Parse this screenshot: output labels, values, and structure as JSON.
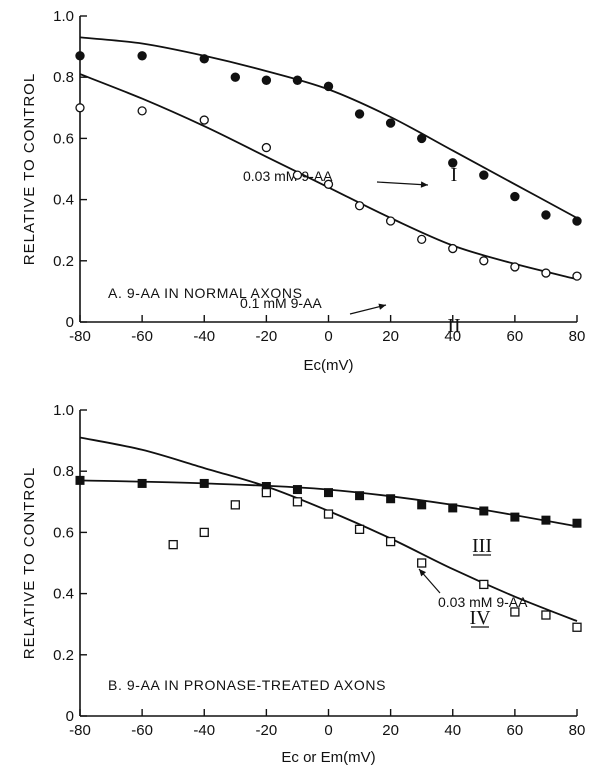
{
  "chart_data": [
    {
      "type": "scatter",
      "panel_label": "A.   9-AA IN NORMAL AXONS",
      "ylabel": "RELATIVE TO CONTROL",
      "xlabel": "Ec(mV)",
      "xlim": [
        -80,
        80
      ],
      "ylim": [
        0,
        1.0
      ],
      "xticks": [
        -80,
        -60,
        -40,
        -20,
        0,
        20,
        40,
        60,
        80
      ],
      "yticks": [
        0,
        0.2,
        0.4,
        0.6,
        0.8,
        1.0
      ],
      "ytick_labels": [
        "0",
        "0.2",
        "0.4",
        "0.6",
        "0.8",
        "1.0"
      ],
      "series": [
        {
          "name": "I",
          "marker": "filled-circle",
          "annotation": "0.03 mM 9-AA",
          "x": [
            -80,
            -60,
            -40,
            -30,
            -20,
            -10,
            0,
            10,
            20,
            30,
            40,
            50,
            60,
            70,
            80
          ],
          "y": [
            0.87,
            0.87,
            0.86,
            0.8,
            0.79,
            0.79,
            0.77,
            0.68,
            0.65,
            0.6,
            0.52,
            0.48,
            0.41,
            0.35,
            0.33
          ],
          "fit": {
            "x": [
              -80,
              -60,
              -40,
              -20,
              0,
              20,
              40,
              60,
              80
            ],
            "y": [
              0.93,
              0.91,
              0.87,
              0.82,
              0.76,
              0.67,
              0.56,
              0.45,
              0.34
            ]
          }
        },
        {
          "name": "II",
          "marker": "open-circle",
          "annotation": "0.1 mM 9-AA",
          "x": [
            -80,
            -60,
            -40,
            -20,
            -10,
            0,
            10,
            20,
            30,
            40,
            50,
            60,
            70,
            80
          ],
          "y": [
            0.7,
            0.69,
            0.66,
            0.57,
            0.48,
            0.45,
            0.38,
            0.33,
            0.27,
            0.24,
            0.2,
            0.18,
            0.16,
            0.15
          ],
          "fit": {
            "x": [
              -80,
              -60,
              -40,
              -20,
              0,
              20,
              40,
              60,
              80
            ],
            "y": [
              0.81,
              0.73,
              0.64,
              0.54,
              0.44,
              0.34,
              0.25,
              0.19,
              0.14
            ]
          }
        }
      ]
    },
    {
      "type": "scatter",
      "panel_label": "B.   9-AA IN PRONASE-TREATED AXONS",
      "ylabel": "RELATIVE TO CONTROL",
      "xlabel": "Ec or Em(mV)",
      "xlim": [
        -80,
        80
      ],
      "ylim": [
        0,
        1.0
      ],
      "xticks": [
        -80,
        -60,
        -40,
        -20,
        0,
        20,
        40,
        60,
        80
      ],
      "yticks": [
        0,
        0.2,
        0.4,
        0.6,
        0.8,
        1.0
      ],
      "ytick_labels": [
        "0",
        "0.2",
        "0.4",
        "0.6",
        "0.8",
        "1.0"
      ],
      "series": [
        {
          "name": "III",
          "marker": "filled-square",
          "annotation": "0.03 mM 9-AA",
          "x": [
            -80,
            -60,
            -40,
            -20,
            -10,
            0,
            10,
            20,
            30,
            40,
            50,
            60,
            70,
            80
          ],
          "y": [
            0.77,
            0.76,
            0.76,
            0.75,
            0.74,
            0.73,
            0.72,
            0.71,
            0.69,
            0.68,
            0.67,
            0.65,
            0.64,
            0.63
          ],
          "fit": {
            "x": [
              -80,
              -40,
              0,
              40,
              80
            ],
            "y": [
              0.77,
              0.76,
              0.74,
              0.69,
              0.62
            ]
          }
        },
        {
          "name": "IV",
          "marker": "open-square",
          "x": [
            -50,
            -40,
            -30,
            -20,
            -10,
            0,
            10,
            20,
            30,
            50,
            60,
            70,
            80
          ],
          "y": [
            0.56,
            0.6,
            0.69,
            0.73,
            0.7,
            0.66,
            0.61,
            0.57,
            0.5,
            0.43,
            0.34,
            0.33,
            0.29
          ],
          "fit": {
            "x": [
              -80,
              -60,
              -40,
              -20,
              0,
              20,
              40,
              60,
              80
            ],
            "y": [
              0.91,
              0.87,
              0.81,
              0.75,
              0.67,
              0.58,
              0.48,
              0.39,
              0.31
            ]
          }
        }
      ]
    }
  ]
}
